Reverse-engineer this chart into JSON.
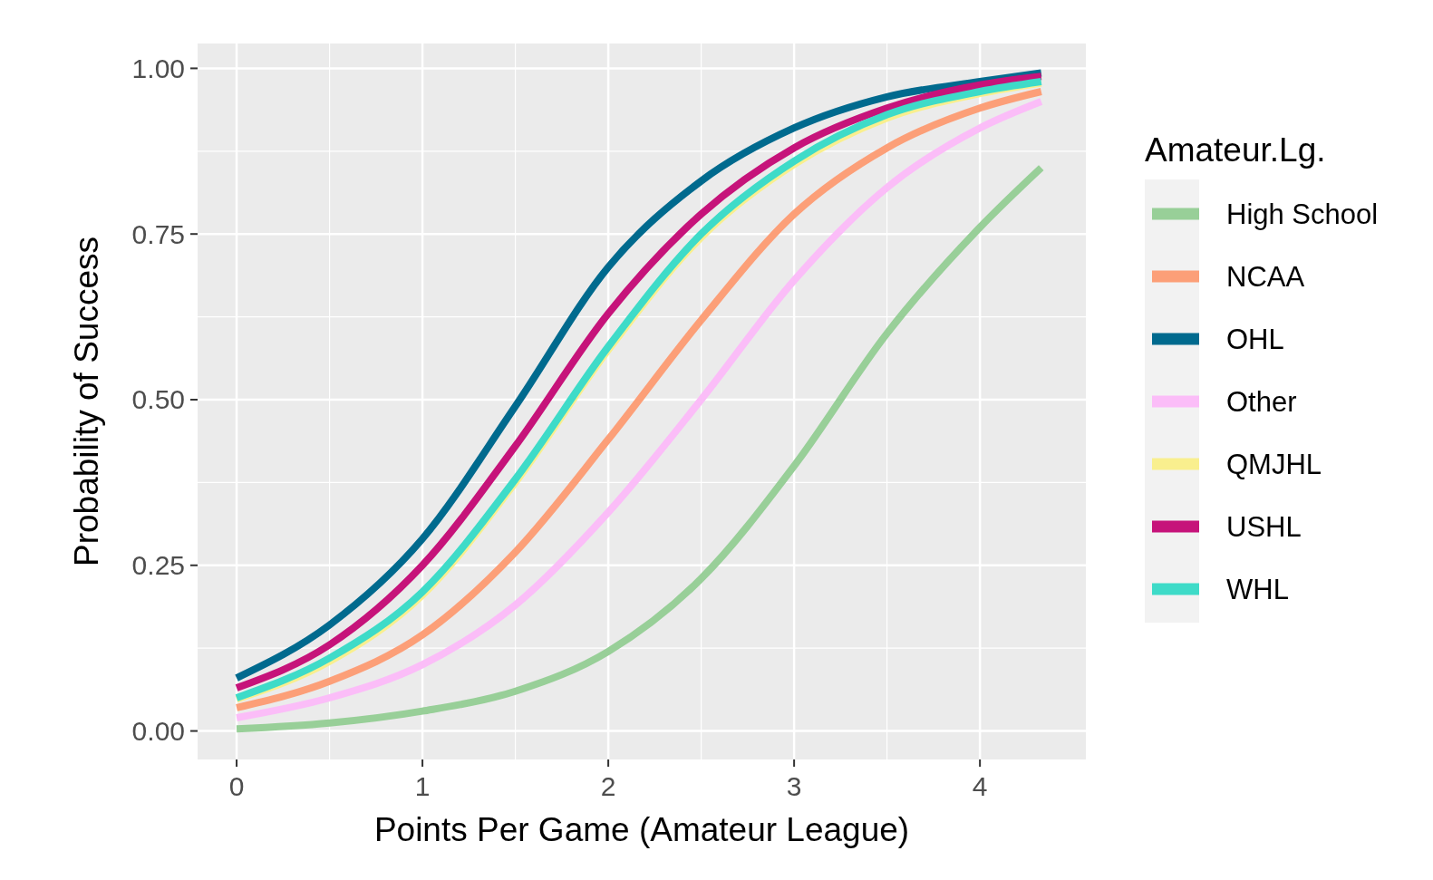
{
  "chart_data": {
    "type": "line",
    "xlabel": "Points Per Game (Amateur League)",
    "ylabel": "Probability of Success",
    "legend_title": "Amateur.Lg.",
    "legend": "right",
    "grid": true,
    "marker": "none",
    "line_style": "solid",
    "x": [
      0,
      0.5,
      1,
      1.5,
      2,
      2.5,
      3,
      3.5,
      4,
      4.33
    ],
    "xlim": [
      -0.21,
      4.57
    ],
    "xticks": [
      0,
      1,
      2,
      3,
      4
    ],
    "ylim": [
      -0.043,
      1.0375
    ],
    "yticks": [
      {
        "value": 0,
        "label": "0.00"
      },
      {
        "value": 0.25,
        "label": "0.25"
      },
      {
        "value": 0.5,
        "label": "0.50"
      },
      {
        "value": 0.75,
        "label": "0.75"
      },
      {
        "value": 1,
        "label": "1.00"
      }
    ],
    "series": [
      {
        "name": "High School",
        "color": "#98cf98",
        "values": [
          0.003,
          0.012,
          0.03,
          0.06,
          0.12,
          0.23,
          0.4,
          0.6,
          0.76,
          0.85
        ]
      },
      {
        "name": "NCAA",
        "color": "#fc9f78",
        "values": [
          0.035,
          0.075,
          0.145,
          0.27,
          0.44,
          0.62,
          0.78,
          0.88,
          0.94,
          0.965
        ]
      },
      {
        "name": "OHL",
        "color": "#006a8e",
        "values": [
          0.08,
          0.16,
          0.29,
          0.49,
          0.7,
          0.83,
          0.91,
          0.957,
          0.98,
          0.993
        ]
      },
      {
        "name": "Other",
        "color": "#fbbdf8",
        "values": [
          0.02,
          0.05,
          0.1,
          0.19,
          0.33,
          0.5,
          0.68,
          0.82,
          0.91,
          0.95
        ]
      },
      {
        "name": "QMJHL",
        "color": "#f9ef8e",
        "values": [
          0.048,
          0.105,
          0.205,
          0.375,
          0.575,
          0.745,
          0.855,
          0.925,
          0.962,
          0.978
        ]
      },
      {
        "name": "USHL",
        "color": "#c6137a",
        "values": [
          0.065,
          0.13,
          0.25,
          0.43,
          0.63,
          0.78,
          0.88,
          0.94,
          0.975,
          0.988
        ]
      },
      {
        "name": "WHL",
        "color": "#3edbc8",
        "values": [
          0.05,
          0.11,
          0.21,
          0.38,
          0.58,
          0.75,
          0.86,
          0.93,
          0.965,
          0.98
        ]
      }
    ]
  }
}
